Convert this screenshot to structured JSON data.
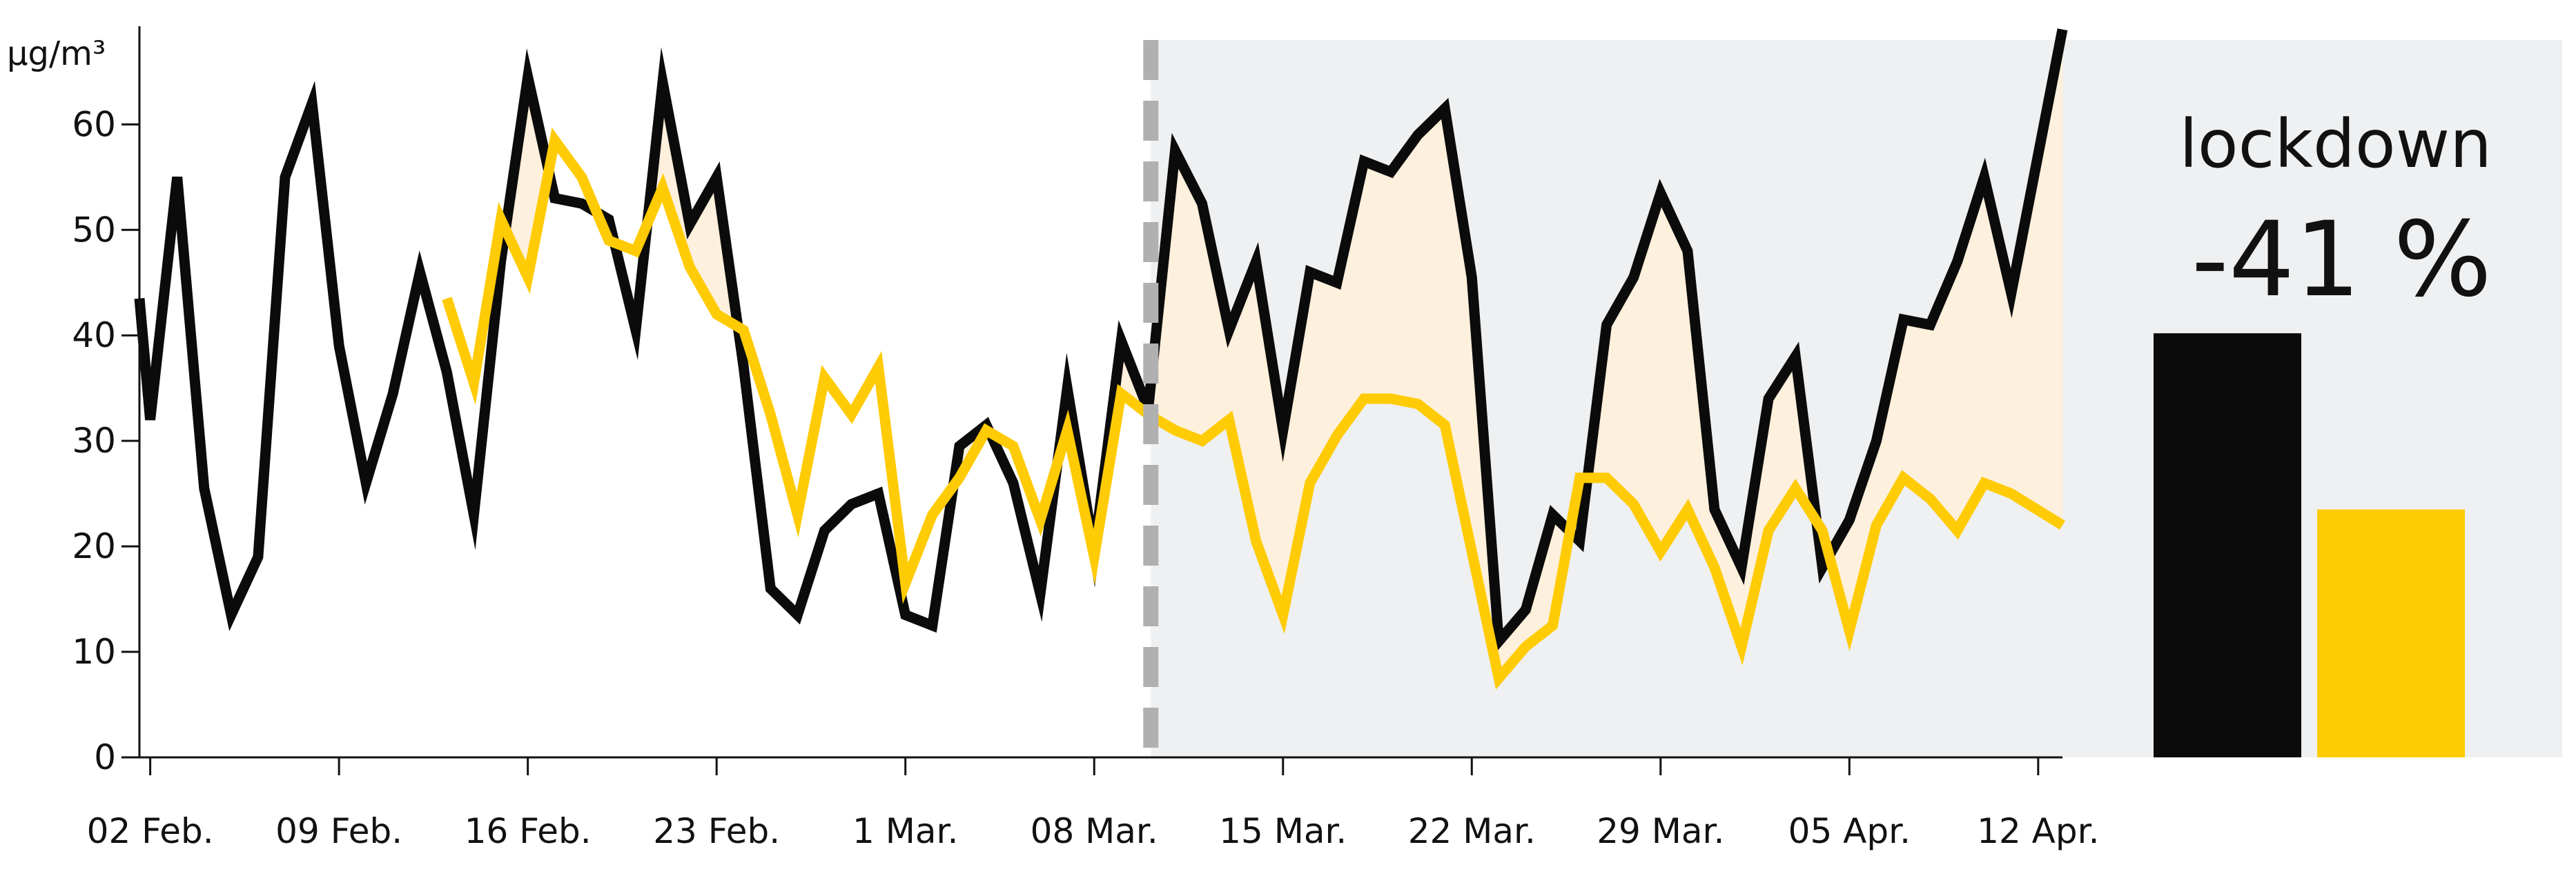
{
  "chart_data": {
    "type": "line",
    "ylabel": "µg/m³",
    "ylim": [
      0,
      68
    ],
    "yticks": [
      0,
      10,
      20,
      30,
      40,
      50,
      60
    ],
    "xlim": [
      0.6,
      71.9
    ],
    "xticks": [
      {
        "x": 1,
        "label": "02 Feb."
      },
      {
        "x": 8,
        "label": "09 Feb."
      },
      {
        "x": 15,
        "label": "16 Feb."
      },
      {
        "x": 22,
        "label": "23 Feb."
      },
      {
        "x": 29,
        "label": "1 Mar."
      },
      {
        "x": 36,
        "label": "08 Mar."
      },
      {
        "x": 43,
        "label": "15 Mar."
      },
      {
        "x": 50,
        "label": "22 Mar."
      },
      {
        "x": 57,
        "label": "29 Mar."
      },
      {
        "x": 64,
        "label": "05 Apr."
      },
      {
        "x": 71,
        "label": "12 Apr."
      }
    ],
    "lockdown_start": 38.1,
    "grid": false,
    "series": [
      {
        "color": "#0b0b0b",
        "points": [
          [
            0.6,
            43.5
          ],
          [
            1,
            32
          ],
          [
            2,
            55
          ],
          [
            3,
            25.5
          ],
          [
            4,
            13.5
          ],
          [
            5,
            19
          ],
          [
            6,
            55
          ],
          [
            7,
            62
          ],
          [
            8,
            39
          ],
          [
            9,
            26
          ],
          [
            10,
            34.5
          ],
          [
            11,
            46
          ],
          [
            12,
            36.5
          ],
          [
            13,
            23
          ],
          [
            14,
            47
          ],
          [
            15,
            64.5
          ],
          [
            16,
            53
          ],
          [
            17,
            52.5
          ],
          [
            18,
            51
          ],
          [
            19,
            40.5
          ],
          [
            20,
            64
          ],
          [
            21,
            50.5
          ],
          [
            22,
            55
          ],
          [
            23,
            37
          ],
          [
            24,
            16
          ],
          [
            25,
            13.5
          ],
          [
            26,
            21.5
          ],
          [
            27,
            24
          ],
          [
            28,
            25
          ],
          [
            29,
            13.5
          ],
          [
            30,
            12.5
          ],
          [
            31,
            29.5
          ],
          [
            32,
            31.5
          ],
          [
            33,
            26
          ],
          [
            34,
            15.5
          ],
          [
            35,
            35
          ],
          [
            36,
            19.5
          ],
          [
            37,
            39.5
          ],
          [
            38,
            33
          ],
          [
            39,
            57.5
          ],
          [
            40,
            52.5
          ],
          [
            41,
            40.5
          ],
          [
            42,
            47
          ],
          [
            43,
            31
          ],
          [
            44,
            46
          ],
          [
            45,
            45
          ],
          [
            46,
            56.5
          ],
          [
            47,
            55.5
          ],
          [
            48,
            59
          ],
          [
            49,
            61.5
          ],
          [
            50,
            45.5
          ],
          [
            51,
            11
          ],
          [
            52,
            14
          ],
          [
            53,
            23
          ],
          [
            54,
            20.5
          ],
          [
            55,
            41
          ],
          [
            56,
            45.5
          ],
          [
            57,
            53.5
          ],
          [
            58,
            48
          ],
          [
            59,
            23.5
          ],
          [
            60,
            18
          ],
          [
            61,
            34
          ],
          [
            62,
            38
          ],
          [
            63,
            18
          ],
          [
            64,
            22.5
          ],
          [
            65,
            30
          ],
          [
            66,
            41.5
          ],
          [
            67,
            41
          ],
          [
            68,
            47
          ],
          [
            69,
            55
          ],
          [
            70,
            44
          ],
          [
            71.9,
            69
          ]
        ]
      },
      {
        "color": "#ffcb05",
        "points": [
          [
            12,
            43.5
          ],
          [
            13,
            35.5
          ],
          [
            14,
            51
          ],
          [
            15,
            45.5
          ],
          [
            16,
            58.5
          ],
          [
            17,
            55
          ],
          [
            18,
            49
          ],
          [
            19,
            48
          ],
          [
            20,
            54
          ],
          [
            21,
            46.5
          ],
          [
            22,
            42
          ],
          [
            23,
            40.5
          ],
          [
            24,
            32.5
          ],
          [
            25,
            23
          ],
          [
            26,
            36
          ],
          [
            27,
            32.5
          ],
          [
            28,
            37
          ],
          [
            29,
            16.5
          ],
          [
            30,
            23
          ],
          [
            31,
            26.5
          ],
          [
            32,
            31
          ],
          [
            33,
            29.5
          ],
          [
            34,
            22.5
          ],
          [
            35,
            31
          ],
          [
            36,
            19
          ],
          [
            37,
            34.5
          ],
          [
            38,
            32.5
          ],
          [
            39,
            31
          ],
          [
            40,
            30
          ],
          [
            41,
            32
          ],
          [
            42,
            20.5
          ],
          [
            43,
            13.5
          ],
          [
            44,
            26
          ],
          [
            45,
            30.5
          ],
          [
            46,
            34
          ],
          [
            47,
            34
          ],
          [
            48,
            33.5
          ],
          [
            49,
            31.5
          ],
          [
            50,
            19.5
          ],
          [
            51,
            7.5
          ],
          [
            52,
            10.5
          ],
          [
            53,
            12.5
          ],
          [
            54,
            26.5
          ],
          [
            55,
            26.5
          ],
          [
            56,
            24
          ],
          [
            57,
            19.5
          ],
          [
            58,
            23.5
          ],
          [
            59,
            18
          ],
          [
            60,
            10.5
          ],
          [
            61,
            21.5
          ],
          [
            62,
            25.5
          ],
          [
            63,
            21.5
          ],
          [
            64,
            12
          ],
          [
            65,
            22
          ],
          [
            66,
            26.5
          ],
          [
            67,
            24.5
          ],
          [
            68,
            21.5
          ],
          [
            69,
            26
          ],
          [
            70,
            25
          ],
          [
            71.9,
            22
          ]
        ]
      }
    ],
    "summary_bars": {
      "values": [
        40.2,
        23.5
      ],
      "colors": [
        "#0b0b0b",
        "#ffcb05"
      ]
    },
    "annotation": {
      "title": "lockdown",
      "value": "-41 %"
    }
  }
}
